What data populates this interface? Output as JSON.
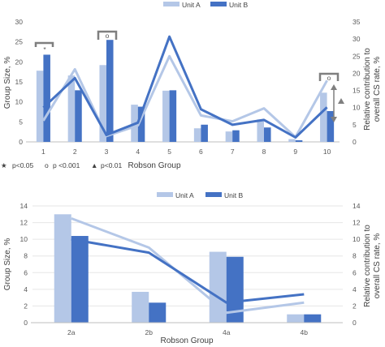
{
  "chart_data": [
    {
      "type": "bar",
      "categories": [
        "1",
        "2",
        "3",
        "4",
        "5",
        "6",
        "7",
        "8",
        "9",
        "10"
      ],
      "series": [
        {
          "name": "Unit A",
          "kind": "bar",
          "axis": "left",
          "color": "#b4c7e7",
          "values": [
            17.8,
            16.6,
            19.2,
            9.3,
            12.8,
            3.4,
            2.6,
            5.6,
            0.7,
            12.3
          ]
        },
        {
          "name": "Unit B",
          "kind": "bar",
          "axis": "left",
          "color": "#4472c4",
          "values": [
            21.8,
            12.9,
            25.5,
            8.8,
            12.9,
            4.3,
            2.9,
            3.6,
            0.4,
            7.7
          ]
        },
        {
          "name": "",
          "kind": "line",
          "axis": "right",
          "color": "#b4c7e7",
          "values": [
            6.2,
            21.2,
            1.7,
            4.8,
            25.0,
            7.7,
            6.0,
            9.8,
            1.4,
            17.9
          ]
        },
        {
          "name": "",
          "kind": "line",
          "axis": "right",
          "color": "#4472c4",
          "values": [
            10.0,
            18.6,
            2.0,
            5.6,
            30.7,
            9.5,
            5.0,
            6.4,
            1.3,
            10.1
          ]
        }
      ],
      "xlabel": "Robson Group",
      "ylabel": "Group Size, %",
      "y2label_line1": "Relative contribution to",
      "y2label_line2": "overall CS rate, %",
      "ylim": [
        0,
        30
      ],
      "y2lim": [
        0,
        35
      ],
      "yticks": [
        "0",
        "5",
        "10",
        "15",
        "20",
        "25",
        "30"
      ],
      "y2ticks": [
        "0",
        "5",
        "10",
        "15",
        "20",
        "25",
        "30",
        "35"
      ],
      "legend_position": "top",
      "grid": false,
      "annotations": {
        "group1_symbol": "*",
        "group3_symbol": "o",
        "group10_symbol": "o",
        "key": [
          {
            "symbol": "★",
            "text": "p<0.05"
          },
          {
            "symbol": "o",
            "text": "p <0.001"
          },
          {
            "symbol": "▲",
            "text": "p<0.01"
          }
        ]
      }
    },
    {
      "type": "bar",
      "categories": [
        "2a",
        "2b",
        "4a",
        "4b"
      ],
      "series": [
        {
          "name": "Unit A",
          "kind": "bar",
          "axis": "left",
          "color": "#b4c7e7",
          "values": [
            13.0,
            3.7,
            8.5,
            1.0
          ]
        },
        {
          "name": "Unit B",
          "kind": "bar",
          "axis": "left",
          "color": "#4472c4",
          "values": [
            10.4,
            2.4,
            7.9,
            1.0
          ]
        },
        {
          "name": "",
          "kind": "line",
          "axis": "right",
          "color": "#b4c7e7",
          "values": [
            12.5,
            9.0,
            1.2,
            2.4
          ]
        },
        {
          "name": "",
          "kind": "line",
          "axis": "right",
          "color": "#4472c4",
          "values": [
            10.0,
            8.4,
            2.4,
            3.4
          ]
        }
      ],
      "xlabel": "Robson Group",
      "ylabel": "Group Size, %",
      "y2label_line1": "Relative contribution to",
      "y2label_line2": "overall CS rate, %",
      "ylim": [
        0,
        14
      ],
      "y2lim": [
        0,
        14
      ],
      "yticks": [
        "0",
        "2",
        "4",
        "6",
        "8",
        "10",
        "12",
        "14"
      ],
      "y2ticks": [
        "0",
        "2",
        "4",
        "6",
        "8",
        "10",
        "12",
        "14"
      ],
      "legend_position": "top",
      "grid": true
    }
  ]
}
